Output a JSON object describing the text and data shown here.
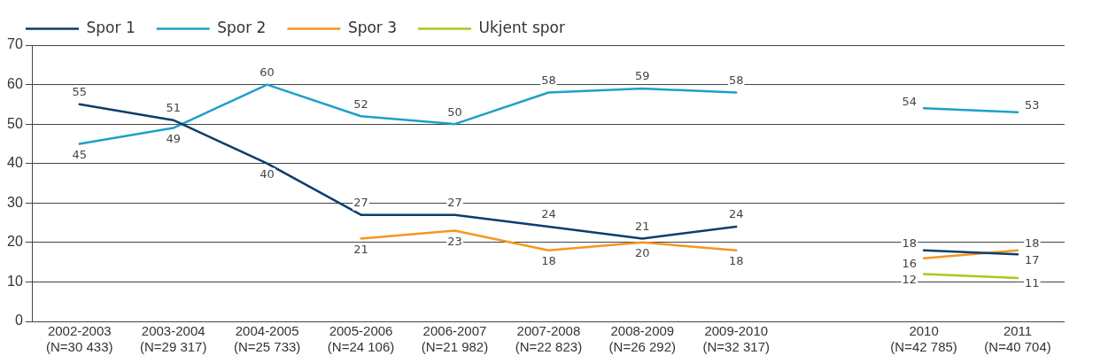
{
  "chart_data": {
    "type": "line",
    "categories": [
      "2002-2003\n(N=30 433)",
      "2003-2004\n(N=29 317)",
      "2004-2005\n(N=25 733)",
      "2005-2006\n(N=24 106)",
      "2006-2007\n(N=21 982)",
      "2007-2008\n(N=22 823)",
      "2008-2009\n(N=26 292)",
      "2009-2010\n(N=32 317)",
      null,
      "2010\n(N=42 785)",
      "2011\n(N=40 704)"
    ],
    "series": [
      {
        "name": "Spor 1",
        "color": "#0b3d6e",
        "values": [
          55,
          51,
          40,
          27,
          27,
          24,
          21,
          24,
          null,
          18,
          17
        ]
      },
      {
        "name": "Spor 2",
        "color": "#1ea0c8",
        "values": [
          45,
          49,
          60,
          52,
          50,
          58,
          59,
          58,
          null,
          54,
          53
        ]
      },
      {
        "name": "Spor 3",
        "color": "#f5961e",
        "values": [
          null,
          null,
          null,
          21,
          23,
          18,
          20,
          18,
          null,
          16,
          18
        ]
      },
      {
        "name": "Ukjent spor",
        "color": "#b4c31e",
        "values": [
          null,
          null,
          null,
          null,
          null,
          null,
          null,
          null,
          null,
          12,
          11
        ]
      }
    ],
    "ylim": [
      0,
      70
    ],
    "yticks": [
      0,
      10,
      20,
      30,
      40,
      50,
      60,
      70
    ],
    "grid": "y",
    "legend": "top left",
    "marker": "none",
    "line_style": "solid",
    "data_labels": true
  }
}
